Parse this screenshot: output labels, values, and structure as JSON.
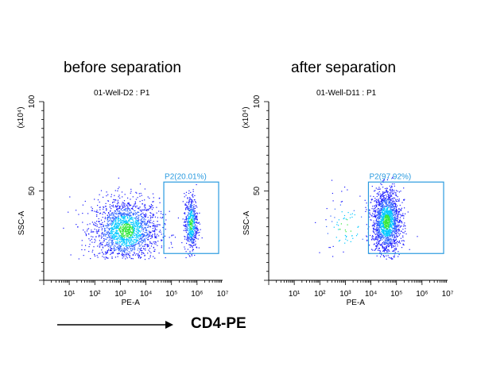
{
  "headings": {
    "left": "before separation",
    "right": "after separation"
  },
  "footer": {
    "label": "CD4-PE"
  },
  "chart_data": [
    {
      "type": "scatter",
      "title": "01-Well-D2 : P1",
      "xlabel": "PE-A",
      "ylabel": "SSC-A",
      "yunit": "(x10⁴)",
      "xscale": "log",
      "xlim": [
        1,
        10000000
      ],
      "ylim": [
        0,
        100
      ],
      "xticks": [
        "10¹",
        "10²",
        "10³",
        "10⁴",
        "10⁵",
        "10⁶",
        "10⁷"
      ],
      "yticks": [
        "50",
        "100"
      ],
      "gate": {
        "name": "P2",
        "percent": "20.01%",
        "label": "P2(20.01%)",
        "x_range": [
          50000,
          7000000
        ],
        "y_range": [
          15,
          55
        ]
      },
      "populations": [
        {
          "name": "",
          "center_log_x": 3.2,
          "center_y": 28,
          "spread_log_x": 0.65,
          "spread_y": 9,
          "n": 1900
        },
        {
          "name": "",
          "center_log_x": 5.75,
          "center_y": 32,
          "spread_log_x": 0.13,
          "spread_y": 8,
          "n": 560
        }
      ]
    },
    {
      "type": "scatter",
      "title": "01-Well-D11 : P1",
      "xlabel": "PE-A",
      "ylabel": "SSC-A",
      "yunit": "(x10⁴)",
      "xscale": "log",
      "xlim": [
        1,
        10000000
      ],
      "ylim": [
        0,
        100
      ],
      "xticks": [
        "10¹",
        "10²",
        "10³",
        "10⁴",
        "10⁵",
        "10⁶",
        "10⁷"
      ],
      "yticks": [
        "50",
        "100"
      ],
      "gate": {
        "name": "P2",
        "percent": "97.92%",
        "label": "P2(97.92%)",
        "x_range": [
          8000,
          7000000
        ],
        "y_range": [
          15,
          55
        ]
      },
      "populations": [
        {
          "name": "",
          "center_log_x": 4.6,
          "center_y": 33,
          "spread_log_x": 0.28,
          "spread_y": 9,
          "n": 1700
        },
        {
          "name": "",
          "center_log_x": 3.0,
          "center_y": 30,
          "spread_log_x": 0.55,
          "spread_y": 10,
          "n": 90
        }
      ]
    }
  ],
  "colors": {
    "gate": "#2a9be0",
    "density_low": "#1a1aff",
    "density_mid": "#00c8ff",
    "density_high": "#33e83a",
    "axis": "#000000"
  }
}
